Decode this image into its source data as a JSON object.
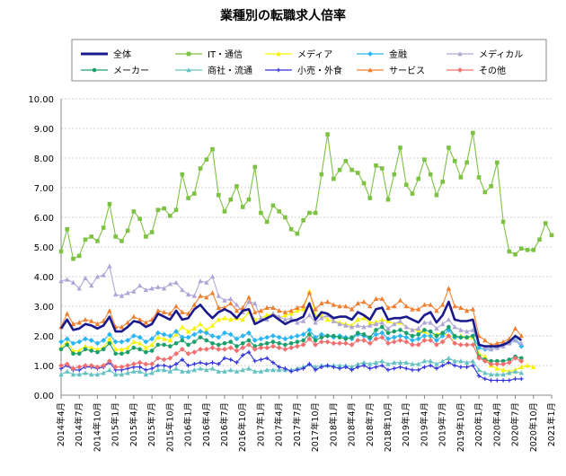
{
  "chart_data": {
    "type": "line",
    "title": "業種別の転職求人倍率",
    "xlabel": "",
    "ylabel": "",
    "ylim": [
      0,
      10
    ],
    "yticks": [
      "0.00",
      "1.00",
      "2.00",
      "3.00",
      "4.00",
      "5.00",
      "6.00",
      "7.00",
      "8.00",
      "9.00",
      "10.00"
    ],
    "grid": true,
    "legend_position": "top",
    "x_start": "2014-04",
    "x_tick_labels": [
      "2014年4月",
      "2014年7月",
      "2014年10月",
      "2015年1月",
      "2015年4月",
      "2015年7月",
      "2015年10月",
      "2016年1月",
      "2016年4月",
      "2016年7月",
      "2016年10月",
      "2017年1月",
      "2017年4月",
      "2017年7月",
      "2017年10月",
      "2018年1月",
      "2018年4月",
      "2018年7月",
      "2018年10月",
      "2019年1月",
      "2019年4月",
      "2019年7月",
      "2019年10月",
      "2020年1月",
      "2020年4月",
      "2020年7月",
      "2020年10月",
      "2021年1月"
    ],
    "series": [
      {
        "name": "全体",
        "color": "#1a1a8c",
        "marker": "line",
        "values": [
          2.25,
          2.55,
          2.2,
          2.25,
          2.4,
          2.35,
          2.25,
          2.35,
          2.65,
          2.15,
          2.15,
          2.3,
          2.5,
          2.45,
          2.3,
          2.4,
          2.75,
          2.65,
          2.55,
          2.85,
          2.55,
          2.6,
          2.9,
          3.05,
          2.8,
          2.6,
          2.8,
          2.9,
          2.8,
          2.6,
          2.85,
          2.9,
          2.4,
          2.5,
          2.6,
          2.7,
          2.55,
          2.4,
          2.5,
          2.55,
          2.65,
          3.1,
          2.55,
          2.8,
          2.75,
          2.6,
          2.65,
          2.65,
          2.55,
          2.8,
          2.7,
          2.55,
          2.9,
          2.95,
          2.55,
          2.6,
          2.6,
          2.65,
          2.55,
          2.45,
          2.7,
          2.8,
          2.45,
          2.7,
          3.15,
          2.55,
          2.5,
          2.5,
          2.55,
          1.7,
          1.65,
          1.65,
          1.65,
          1.7,
          1.8,
          2.0,
          1.85
        ]
      },
      {
        "name": "IT・通信",
        "color": "#7dc242",
        "marker": "square",
        "values": [
          4.85,
          5.6,
          4.6,
          4.7,
          5.25,
          5.35,
          5.2,
          5.65,
          6.45,
          5.35,
          5.2,
          5.55,
          6.2,
          5.95,
          5.35,
          5.5,
          6.25,
          6.3,
          6.05,
          6.25,
          7.45,
          6.65,
          6.8,
          7.65,
          7.95,
          8.3,
          6.75,
          6.2,
          6.6,
          7.05,
          6.35,
          6.6,
          7.7,
          6.15,
          5.85,
          6.4,
          6.2,
          6.0,
          5.6,
          5.45,
          5.9,
          6.15,
          6.15,
          7.45,
          8.8,
          7.3,
          7.6,
          7.9,
          7.6,
          7.5,
          7.15,
          6.65,
          7.75,
          7.65,
          6.6,
          7.45,
          8.35,
          7.1,
          6.8,
          7.3,
          7.95,
          7.45,
          6.75,
          7.2,
          8.35,
          7.9,
          7.35,
          7.85,
          8.85,
          7.35,
          6.85,
          7.05,
          7.85,
          5.85,
          4.85,
          4.75,
          4.95,
          4.9,
          4.9,
          5.25,
          5.8,
          5.4
        ]
      },
      {
        "name": "メディア",
        "color": "#f5f500",
        "marker": "triangle",
        "values": [
          1.6,
          1.8,
          1.5,
          1.5,
          1.65,
          1.6,
          1.55,
          1.6,
          1.9,
          1.55,
          1.55,
          1.6,
          1.8,
          1.75,
          1.6,
          1.7,
          1.95,
          1.9,
          1.85,
          2.05,
          2.3,
          2.15,
          2.25,
          2.4,
          2.2,
          2.35,
          2.55,
          2.6,
          2.55,
          2.6,
          2.55,
          2.8,
          2.55,
          2.6,
          2.7,
          2.75,
          2.6,
          2.7,
          2.75,
          2.85,
          2.9,
          3.5,
          2.7,
          2.7,
          2.55,
          2.5,
          2.45,
          2.4,
          2.35,
          2.55,
          2.6,
          2.45,
          2.45,
          2.55,
          2.5,
          2.4,
          2.45,
          2.3,
          2.2,
          2.2,
          2.15,
          2.0,
          2.05,
          2.1,
          2.0,
          1.95,
          2.0,
          1.95,
          1.95,
          1.4,
          1.3,
          1.0,
          0.9,
          0.85,
          0.8,
          0.85,
          0.95,
          1.0,
          0.95
        ]
      },
      {
        "name": "金融",
        "color": "#29b6f6",
        "marker": "diamond",
        "values": [
          1.8,
          1.9,
          1.75,
          1.8,
          1.9,
          1.85,
          1.75,
          1.85,
          2.05,
          1.8,
          1.8,
          1.85,
          2.0,
          1.95,
          1.8,
          1.9,
          2.1,
          2.05,
          2.0,
          2.15,
          1.95,
          1.95,
          2.05,
          2.15,
          2.1,
          2.0,
          1.95,
          2.1,
          2.05,
          1.9,
          2.0,
          2.1,
          1.85,
          1.9,
          1.95,
          2.0,
          1.95,
          1.9,
          1.95,
          2.0,
          2.05,
          2.2,
          1.95,
          2.05,
          2.0,
          1.95,
          2.0,
          1.95,
          1.9,
          2.05,
          2.0,
          1.9,
          2.05,
          2.1,
          1.9,
          1.95,
          2.0,
          1.95,
          1.85,
          1.9,
          2.0,
          2.0,
          1.85,
          2.0,
          2.2,
          1.95,
          1.95,
          1.95,
          2.0,
          1.6,
          1.55,
          1.55,
          1.6,
          1.7,
          1.75,
          1.85,
          1.65
        ]
      },
      {
        "name": "メディカル",
        "color": "#b0a6d6",
        "marker": "triangle",
        "values": [
          3.85,
          3.9,
          3.8,
          3.6,
          3.95,
          3.7,
          4.0,
          4.05,
          4.35,
          3.4,
          3.35,
          3.45,
          3.5,
          3.7,
          3.55,
          3.6,
          3.65,
          3.6,
          3.75,
          3.8,
          3.55,
          3.4,
          3.35,
          3.85,
          3.8,
          4.0,
          3.35,
          3.2,
          3.25,
          3.05,
          2.8,
          3.15,
          3.1,
          2.6,
          2.55,
          2.75,
          2.65,
          2.55,
          2.6,
          2.45,
          2.5,
          2.7,
          2.45,
          2.6,
          2.7,
          2.5,
          2.4,
          2.35,
          2.3,
          2.35,
          2.3,
          2.35,
          2.4,
          2.45,
          2.25,
          2.4,
          2.5,
          2.3,
          2.2,
          2.25,
          2.45,
          2.45,
          2.25,
          2.4,
          2.55,
          2.3,
          2.2,
          2.15,
          2.2,
          1.75,
          1.6,
          1.55,
          1.6,
          1.65,
          1.75,
          1.85,
          1.75
        ]
      },
      {
        "name": "メーカー",
        "color": "#1aa06b",
        "marker": "circle",
        "values": [
          1.55,
          1.7,
          1.4,
          1.4,
          1.55,
          1.5,
          1.45,
          1.55,
          1.75,
          1.4,
          1.4,
          1.45,
          1.6,
          1.55,
          1.45,
          1.5,
          1.7,
          1.7,
          1.65,
          1.75,
          1.85,
          1.7,
          1.8,
          1.95,
          1.85,
          1.75,
          1.7,
          1.75,
          1.8,
          1.65,
          1.75,
          1.85,
          1.65,
          1.7,
          1.75,
          1.8,
          1.75,
          1.7,
          1.75,
          1.8,
          1.85,
          2.05,
          1.85,
          1.95,
          2.0,
          2.0,
          1.95,
          1.9,
          1.95,
          2.1,
          2.05,
          1.95,
          2.2,
          2.3,
          2.1,
          2.15,
          2.2,
          2.1,
          2.0,
          2.05,
          2.2,
          2.15,
          2.0,
          2.1,
          2.3,
          2.0,
          1.95,
          1.95,
          2.0,
          1.3,
          1.2,
          1.15,
          1.15,
          1.15,
          1.2,
          1.3,
          1.25
        ]
      },
      {
        "name": "商社・流通",
        "color": "#66c2c2",
        "marker": "triangle",
        "values": [
          0.7,
          0.8,
          0.7,
          0.7,
          0.75,
          0.7,
          0.7,
          0.75,
          0.85,
          0.7,
          0.7,
          0.75,
          0.8,
          0.8,
          0.7,
          0.75,
          0.85,
          0.85,
          0.8,
          0.9,
          0.8,
          0.8,
          0.85,
          0.9,
          0.85,
          0.9,
          0.8,
          0.8,
          0.85,
          0.8,
          0.85,
          0.9,
          0.8,
          0.8,
          0.85,
          0.85,
          0.85,
          0.85,
          0.85,
          0.9,
          0.95,
          1.05,
          0.95,
          1.0,
          1.0,
          1.0,
          1.0,
          1.0,
          0.95,
          1.05,
          1.1,
          1.05,
          1.1,
          1.15,
          1.05,
          1.1,
          1.1,
          1.1,
          1.05,
          1.05,
          1.15,
          1.15,
          1.05,
          1.15,
          1.25,
          1.15,
          1.15,
          1.1,
          1.15,
          0.85,
          0.75,
          0.7,
          0.7,
          0.7,
          0.75,
          0.8,
          0.75
        ]
      },
      {
        "name": "小売・外食",
        "color": "#3030e0",
        "marker": "plus",
        "values": [
          0.9,
          1.0,
          0.85,
          0.85,
          0.95,
          0.95,
          0.9,
          0.95,
          1.1,
          0.85,
          0.85,
          0.9,
          0.95,
          0.95,
          0.85,
          0.9,
          1.0,
          1.0,
          0.95,
          1.05,
          1.2,
          1.0,
          1.05,
          1.1,
          1.05,
          1.1,
          1.05,
          1.25,
          1.2,
          1.1,
          1.35,
          1.45,
          1.15,
          1.2,
          1.25,
          1.1,
          0.95,
          0.9,
          0.8,
          0.85,
          0.9,
          1.05,
          0.85,
          0.95,
          1.0,
          0.95,
          0.9,
          0.95,
          0.85,
          0.95,
          1.0,
          0.9,
          0.95,
          1.0,
          0.85,
          0.9,
          0.95,
          0.9,
          0.85,
          0.85,
          0.95,
          1.0,
          0.9,
          1.0,
          1.1,
          1.0,
          0.95,
          0.95,
          1.0,
          0.65,
          0.55,
          0.5,
          0.5,
          0.5,
          0.5,
          0.55,
          0.55
        ]
      },
      {
        "name": "サービス",
        "color": "#f08030",
        "marker": "triangle",
        "values": [
          2.3,
          2.75,
          2.4,
          2.45,
          2.55,
          2.5,
          2.4,
          2.5,
          2.85,
          2.3,
          2.3,
          2.45,
          2.65,
          2.55,
          2.45,
          2.55,
          2.85,
          2.8,
          2.75,
          3.0,
          2.8,
          2.75,
          3.05,
          3.35,
          3.3,
          3.45,
          2.95,
          2.95,
          3.1,
          2.85,
          2.95,
          3.3,
          2.8,
          2.85,
          2.95,
          2.95,
          2.85,
          2.8,
          2.85,
          2.95,
          3.0,
          3.45,
          2.9,
          3.1,
          3.15,
          3.05,
          3.0,
          3.0,
          2.9,
          3.1,
          3.15,
          3.0,
          3.25,
          3.25,
          2.95,
          3.0,
          3.2,
          3.0,
          2.9,
          2.9,
          3.05,
          3.05,
          2.85,
          3.05,
          3.6,
          3.0,
          2.95,
          2.85,
          2.9,
          2.0,
          1.85,
          1.7,
          1.75,
          1.8,
          1.9,
          2.25,
          2.0
        ]
      },
      {
        "name": "その他",
        "color": "#f07070",
        "marker": "diamond",
        "values": [
          1.0,
          1.05,
          0.9,
          0.95,
          1.0,
          1.0,
          0.95,
          1.0,
          1.15,
          0.95,
          0.95,
          1.0,
          1.05,
          1.1,
          1.05,
          1.05,
          1.25,
          1.2,
          1.25,
          1.4,
          1.55,
          1.4,
          1.45,
          1.55,
          1.55,
          1.6,
          1.55,
          1.55,
          1.6,
          1.5,
          1.6,
          1.7,
          1.55,
          1.6,
          1.6,
          1.65,
          1.6,
          1.55,
          1.6,
          1.65,
          1.7,
          1.9,
          1.7,
          1.8,
          1.8,
          1.75,
          1.75,
          1.75,
          1.7,
          1.85,
          1.85,
          1.75,
          1.9,
          1.95,
          1.75,
          1.8,
          1.85,
          1.8,
          1.7,
          1.7,
          1.85,
          1.85,
          1.7,
          1.8,
          2.0,
          1.75,
          1.7,
          1.7,
          1.7,
          1.25,
          1.15,
          1.05,
          1.05,
          1.05,
          1.1,
          1.25,
          1.15
        ]
      }
    ]
  }
}
